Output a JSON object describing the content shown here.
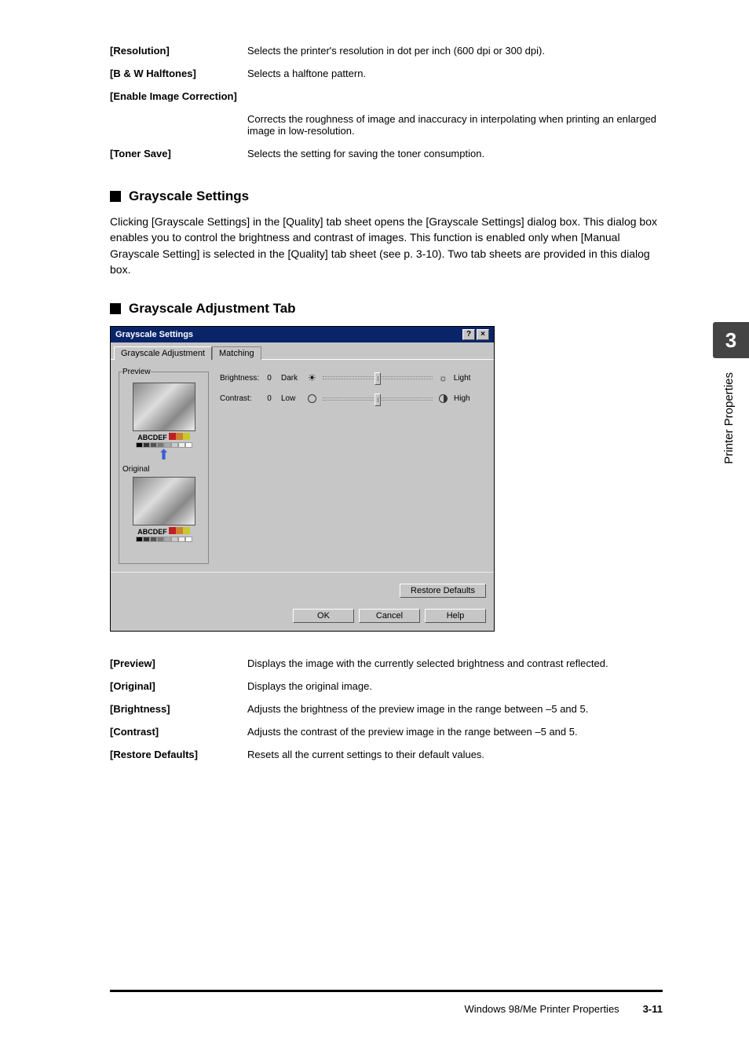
{
  "chapter_number": "3",
  "side_label": "Printer Properties",
  "top_props": [
    {
      "key": "[Resolution]",
      "val": "Selects the printer's resolution in dot per inch (600 dpi or 300 dpi)."
    },
    {
      "key": "[B & W Halftones]",
      "val": "Selects a halftone pattern."
    },
    {
      "key": "[Enable Image Correction]",
      "val": ""
    },
    {
      "key": "",
      "val": "Corrects the roughness of image and inaccuracy in interpolating when printing an enlarged image in low-resolution."
    },
    {
      "key": "[Toner Save]",
      "val": "Selects the setting for saving the toner consumption."
    }
  ],
  "sec1_title": "Grayscale Settings",
  "sec1_body": "Clicking [Grayscale Settings] in the [Quality] tab sheet opens the [Grayscale Settings] dialog box. This dialog box enables you to control the brightness and contrast of images. This function is enabled only when [Manual Grayscale Setting] is selected in the [Quality] tab sheet (see p. 3-10). Two tab sheets are provided in this dialog box.",
  "sec2_title": "Grayscale Adjustment Tab",
  "dialog": {
    "title": "Grayscale Settings",
    "tabs": [
      "Grayscale Adjustment",
      "Matching"
    ],
    "preview_label": "Preview",
    "original_label": "Original",
    "abc_label": "ABCDEF",
    "brightness": {
      "label": "Brightness:",
      "value": "0",
      "low": "Dark",
      "high": "Light"
    },
    "contrast": {
      "label": "Contrast:",
      "value": "0",
      "low": "Low",
      "high": "High"
    },
    "buttons": {
      "restore": "Restore Defaults",
      "ok": "OK",
      "cancel": "Cancel",
      "help": "Help"
    },
    "sw_colors": [
      "#c02020",
      "#d08030",
      "#c8c830",
      "#40a040",
      "#3060c0",
      "#704090"
    ],
    "sq_colors": [
      "#000",
      "#333",
      "#555",
      "#777",
      "#aaa",
      "#ccc",
      "#eee",
      "#fff"
    ]
  },
  "bottom_props": [
    {
      "key": "[Preview]",
      "val": "Displays the image with the currently selected brightness and contrast reflected."
    },
    {
      "key": "[Original]",
      "val": "Displays the original image."
    },
    {
      "key": "[Brightness]",
      "val": "Adjusts the brightness of the preview image in the range between –5 and 5."
    },
    {
      "key": "[Contrast]",
      "val": "Adjusts the contrast of the preview image in the range between –5 and 5."
    },
    {
      "key": "[Restore Defaults]",
      "val": "Resets all the current settings to their default values."
    }
  ],
  "footer": {
    "left": "Windows 98/Me Printer Properties",
    "right": "3-11"
  }
}
